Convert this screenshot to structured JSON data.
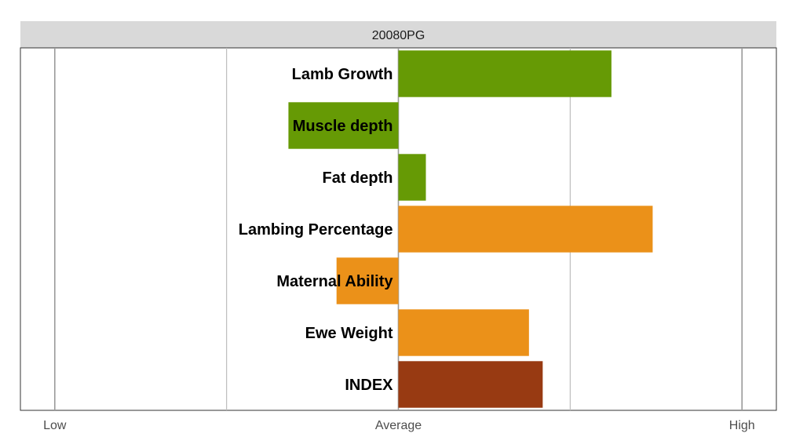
{
  "chart_data": {
    "type": "bar",
    "orientation": "horizontal",
    "title": "20080PG",
    "categories": [
      "Lamb Growth",
      "Muscle depth",
      "Fat depth",
      "Lambing Percentage",
      "Maternal Ability",
      "Ewe Weight",
      "INDEX"
    ],
    "values": [
      0.62,
      -0.32,
      0.08,
      0.74,
      -0.18,
      0.38,
      0.42
    ],
    "colors": [
      "#669a05",
      "#669a05",
      "#669a05",
      "#eb9119",
      "#eb9119",
      "#eb9119",
      "#983a12"
    ],
    "xlim": [
      -1.1,
      1.1
    ],
    "xticks": [
      {
        "value": -1,
        "label": "Low"
      },
      {
        "value": 0,
        "label": "Average"
      },
      {
        "value": 1,
        "label": "High"
      }
    ],
    "minor_gridlines": [
      -0.5,
      0.5
    ],
    "grid": true,
    "legend": "none",
    "xlabel": "",
    "ylabel": ""
  }
}
